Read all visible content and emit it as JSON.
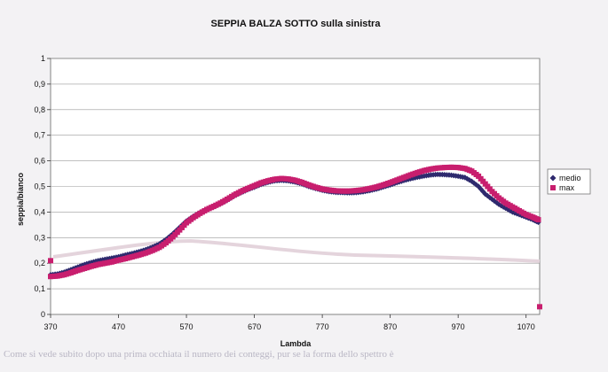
{
  "chart_data": {
    "type": "scatter",
    "title": "SEPPIA BALZA SOTTO sulla sinistra",
    "xlabel": "Lambda",
    "ylabel": "seppia/bianco",
    "xlim": [
      370,
      1090
    ],
    "ylim": [
      0,
      1
    ],
    "xticks": [
      "370",
      "470",
      "570",
      "670",
      "770",
      "870",
      "970",
      "1070"
    ],
    "yticks": [
      "0",
      "0,1",
      "0,2",
      "0,3",
      "0,4",
      "0,5",
      "0,6",
      "0,7",
      "0,8",
      "0,9",
      "1"
    ],
    "grid": "horizontal",
    "legend_position": "right",
    "series": [
      {
        "name": "medio",
        "color": "#2e2a6e",
        "marker": "diamond",
        "x": [
          370,
          380,
          390,
          400,
          410,
          420,
          430,
          440,
          450,
          460,
          470,
          480,
          490,
          500,
          510,
          520,
          530,
          540,
          550,
          560,
          570,
          580,
          590,
          600,
          610,
          620,
          630,
          640,
          650,
          660,
          670,
          680,
          690,
          700,
          710,
          720,
          730,
          740,
          750,
          760,
          770,
          780,
          790,
          800,
          810,
          820,
          830,
          840,
          850,
          860,
          870,
          880,
          890,
          900,
          910,
          920,
          930,
          940,
          950,
          960,
          970,
          980,
          990,
          1000,
          1010,
          1020,
          1030,
          1040,
          1050,
          1060,
          1070,
          1080,
          1088
        ],
        "y": [
          0.155,
          0.158,
          0.165,
          0.175,
          0.185,
          0.195,
          0.203,
          0.21,
          0.215,
          0.22,
          0.225,
          0.232,
          0.238,
          0.245,
          0.253,
          0.263,
          0.275,
          0.293,
          0.315,
          0.34,
          0.365,
          0.383,
          0.398,
          0.41,
          0.42,
          0.432,
          0.446,
          0.462,
          0.475,
          0.487,
          0.497,
          0.508,
          0.516,
          0.522,
          0.524,
          0.522,
          0.517,
          0.51,
          0.5,
          0.492,
          0.485,
          0.48,
          0.477,
          0.476,
          0.475,
          0.476,
          0.479,
          0.484,
          0.49,
          0.498,
          0.506,
          0.515,
          0.523,
          0.53,
          0.536,
          0.541,
          0.545,
          0.547,
          0.546,
          0.544,
          0.54,
          0.535,
          0.52,
          0.5,
          0.47,
          0.45,
          0.43,
          0.415,
          0.4,
          0.39,
          0.38,
          0.37,
          0.36
        ]
      },
      {
        "name": "max",
        "color": "#c81e6e",
        "marker": "square",
        "x": [
          370,
          380,
          390,
          400,
          410,
          420,
          430,
          440,
          450,
          460,
          470,
          480,
          490,
          500,
          510,
          520,
          530,
          540,
          550,
          560,
          570,
          580,
          590,
          600,
          610,
          620,
          630,
          640,
          650,
          660,
          670,
          680,
          690,
          700,
          710,
          720,
          730,
          740,
          750,
          760,
          770,
          780,
          790,
          800,
          810,
          820,
          830,
          840,
          850,
          860,
          870,
          880,
          890,
          900,
          910,
          920,
          930,
          940,
          950,
          960,
          970,
          980,
          990,
          1000,
          1010,
          1020,
          1030,
          1040,
          1050,
          1060,
          1070,
          1080,
          1088
        ],
        "y": [
          0.148,
          0.15,
          0.155,
          0.163,
          0.172,
          0.18,
          0.188,
          0.195,
          0.2,
          0.205,
          0.212,
          0.218,
          0.225,
          0.232,
          0.24,
          0.25,
          0.262,
          0.28,
          0.303,
          0.33,
          0.358,
          0.378,
          0.395,
          0.41,
          0.422,
          0.435,
          0.45,
          0.466,
          0.48,
          0.492,
          0.503,
          0.514,
          0.522,
          0.528,
          0.531,
          0.529,
          0.524,
          0.516,
          0.506,
          0.497,
          0.49,
          0.486,
          0.483,
          0.482,
          0.482,
          0.484,
          0.487,
          0.492,
          0.498,
          0.506,
          0.515,
          0.525,
          0.535,
          0.545,
          0.554,
          0.562,
          0.568,
          0.572,
          0.574,
          0.575,
          0.574,
          0.57,
          0.56,
          0.54,
          0.51,
          0.48,
          0.455,
          0.435,
          0.42,
          0.405,
          0.39,
          0.38,
          0.37
        ]
      }
    ],
    "extra_points": [
      {
        "series": "max",
        "x": 370,
        "y": 0.21
      },
      {
        "series": "max",
        "x": 1090,
        "y": 0.03
      }
    ]
  },
  "bleed_text": "Come si vede subito dopo una prima occhiata il numero dei conteggi, pur se la forma dello spettro è"
}
